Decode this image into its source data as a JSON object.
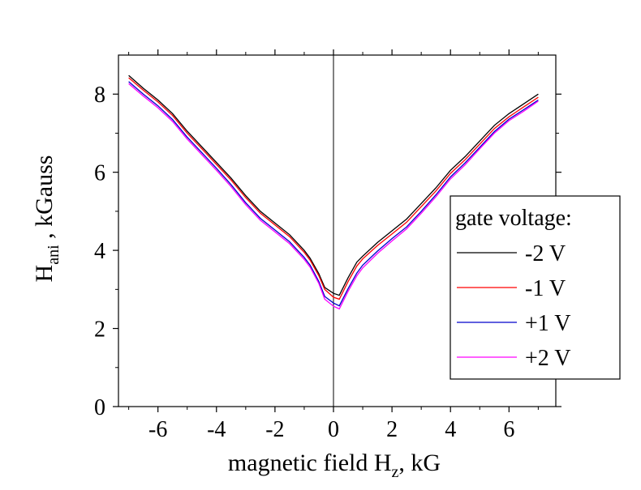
{
  "chart_data": {
    "type": "line",
    "xlabel": {
      "pre": "magnetic field H",
      "sub": "z",
      "post": ", kG"
    },
    "ylabel": {
      "pre": "H",
      "sub": "ani",
      "post": " , kGauss"
    },
    "xlim": [
      -7.35,
      7.6
    ],
    "ylim": [
      0,
      9
    ],
    "xticks": [
      -6,
      -4,
      -2,
      0,
      2,
      4,
      6
    ],
    "yticks": [
      0,
      2,
      4,
      6,
      8
    ],
    "zero_line": true,
    "grid": false,
    "legend": {
      "title": "gate voltage:",
      "position": "right"
    },
    "series": [
      {
        "name": "-2 V",
        "color": "#000000",
        "points": [
          [
            -7,
            8.48
          ],
          [
            -6.5,
            8.15
          ],
          [
            -6,
            7.85
          ],
          [
            -5.5,
            7.5
          ],
          [
            -5,
            7.05
          ],
          [
            -4.5,
            6.65
          ],
          [
            -4,
            6.25
          ],
          [
            -3.5,
            5.85
          ],
          [
            -3,
            5.4
          ],
          [
            -2.5,
            5.0
          ],
          [
            -2,
            4.7
          ],
          [
            -1.5,
            4.4
          ],
          [
            -1,
            4.0
          ],
          [
            -0.8,
            3.8
          ],
          [
            -0.5,
            3.4
          ],
          [
            -0.3,
            3.05
          ],
          [
            0,
            2.9
          ],
          [
            0.2,
            2.85
          ],
          [
            0.5,
            3.3
          ],
          [
            0.8,
            3.7
          ],
          [
            1,
            3.85
          ],
          [
            1.5,
            4.2
          ],
          [
            2,
            4.5
          ],
          [
            2.5,
            4.8
          ],
          [
            3,
            5.2
          ],
          [
            3.5,
            5.6
          ],
          [
            4,
            6.05
          ],
          [
            4.5,
            6.4
          ],
          [
            5,
            6.8
          ],
          [
            5.5,
            7.2
          ],
          [
            6,
            7.5
          ],
          [
            6.5,
            7.75
          ],
          [
            7,
            8.0
          ]
        ]
      },
      {
        "name": "-1 V",
        "color": "#ff0000",
        "points": [
          [
            -7,
            8.42
          ],
          [
            -6.5,
            8.1
          ],
          [
            -6,
            7.8
          ],
          [
            -5.5,
            7.45
          ],
          [
            -5,
            7.0
          ],
          [
            -4.5,
            6.6
          ],
          [
            -4,
            6.2
          ],
          [
            -3.5,
            5.8
          ],
          [
            -3,
            5.35
          ],
          [
            -2.5,
            4.95
          ],
          [
            -2,
            4.65
          ],
          [
            -1.5,
            4.35
          ],
          [
            -1,
            3.95
          ],
          [
            -0.8,
            3.75
          ],
          [
            -0.5,
            3.35
          ],
          [
            -0.3,
            3.0
          ],
          [
            0,
            2.8
          ],
          [
            0.2,
            2.75
          ],
          [
            0.5,
            3.2
          ],
          [
            0.8,
            3.6
          ],
          [
            1,
            3.78
          ],
          [
            1.5,
            4.12
          ],
          [
            2,
            4.42
          ],
          [
            2.5,
            4.72
          ],
          [
            3,
            5.12
          ],
          [
            3.5,
            5.52
          ],
          [
            4,
            5.97
          ],
          [
            4.5,
            6.32
          ],
          [
            5,
            6.72
          ],
          [
            5.5,
            7.12
          ],
          [
            6,
            7.42
          ],
          [
            6.5,
            7.67
          ],
          [
            7,
            7.92
          ]
        ]
      },
      {
        "name": "+1 V",
        "color": "#0000cc",
        "points": [
          [
            -7,
            8.32
          ],
          [
            -6.5,
            8.0
          ],
          [
            -6,
            7.7
          ],
          [
            -5.5,
            7.35
          ],
          [
            -5,
            6.9
          ],
          [
            -4.5,
            6.5
          ],
          [
            -4,
            6.1
          ],
          [
            -3.5,
            5.68
          ],
          [
            -3,
            5.22
          ],
          [
            -2.5,
            4.82
          ],
          [
            -2,
            4.52
          ],
          [
            -1.5,
            4.22
          ],
          [
            -1,
            3.82
          ],
          [
            -0.8,
            3.62
          ],
          [
            -0.5,
            3.2
          ],
          [
            -0.3,
            2.82
          ],
          [
            0,
            2.65
          ],
          [
            0.2,
            2.58
          ],
          [
            0.5,
            3.02
          ],
          [
            0.8,
            3.42
          ],
          [
            1,
            3.62
          ],
          [
            1.5,
            3.98
          ],
          [
            2,
            4.3
          ],
          [
            2.5,
            4.6
          ],
          [
            3,
            5.0
          ],
          [
            3.5,
            5.42
          ],
          [
            4,
            5.88
          ],
          [
            4.5,
            6.24
          ],
          [
            5,
            6.64
          ],
          [
            5.5,
            7.04
          ],
          [
            6,
            7.36
          ],
          [
            6.5,
            7.6
          ],
          [
            7,
            7.85
          ]
        ]
      },
      {
        "name": "+2 V",
        "color": "#ff00ff",
        "points": [
          [
            -7,
            8.27
          ],
          [
            -6.5,
            7.95
          ],
          [
            -6,
            7.65
          ],
          [
            -5.5,
            7.3
          ],
          [
            -5,
            6.85
          ],
          [
            -4.5,
            6.45
          ],
          [
            -4,
            6.05
          ],
          [
            -3.5,
            5.63
          ],
          [
            -3,
            5.17
          ],
          [
            -2.5,
            4.77
          ],
          [
            -2,
            4.47
          ],
          [
            -1.5,
            4.17
          ],
          [
            -1,
            3.77
          ],
          [
            -0.8,
            3.57
          ],
          [
            -0.5,
            3.15
          ],
          [
            -0.3,
            2.75
          ],
          [
            0,
            2.57
          ],
          [
            0.2,
            2.5
          ],
          [
            0.5,
            2.95
          ],
          [
            0.8,
            3.35
          ],
          [
            1,
            3.55
          ],
          [
            1.5,
            3.92
          ],
          [
            2,
            4.24
          ],
          [
            2.5,
            4.55
          ],
          [
            3,
            4.95
          ],
          [
            3.5,
            5.37
          ],
          [
            4,
            5.83
          ],
          [
            4.5,
            6.19
          ],
          [
            5,
            6.6
          ],
          [
            5.5,
            7.0
          ],
          [
            6,
            7.32
          ],
          [
            6.5,
            7.56
          ],
          [
            7,
            7.82
          ]
        ]
      }
    ]
  }
}
